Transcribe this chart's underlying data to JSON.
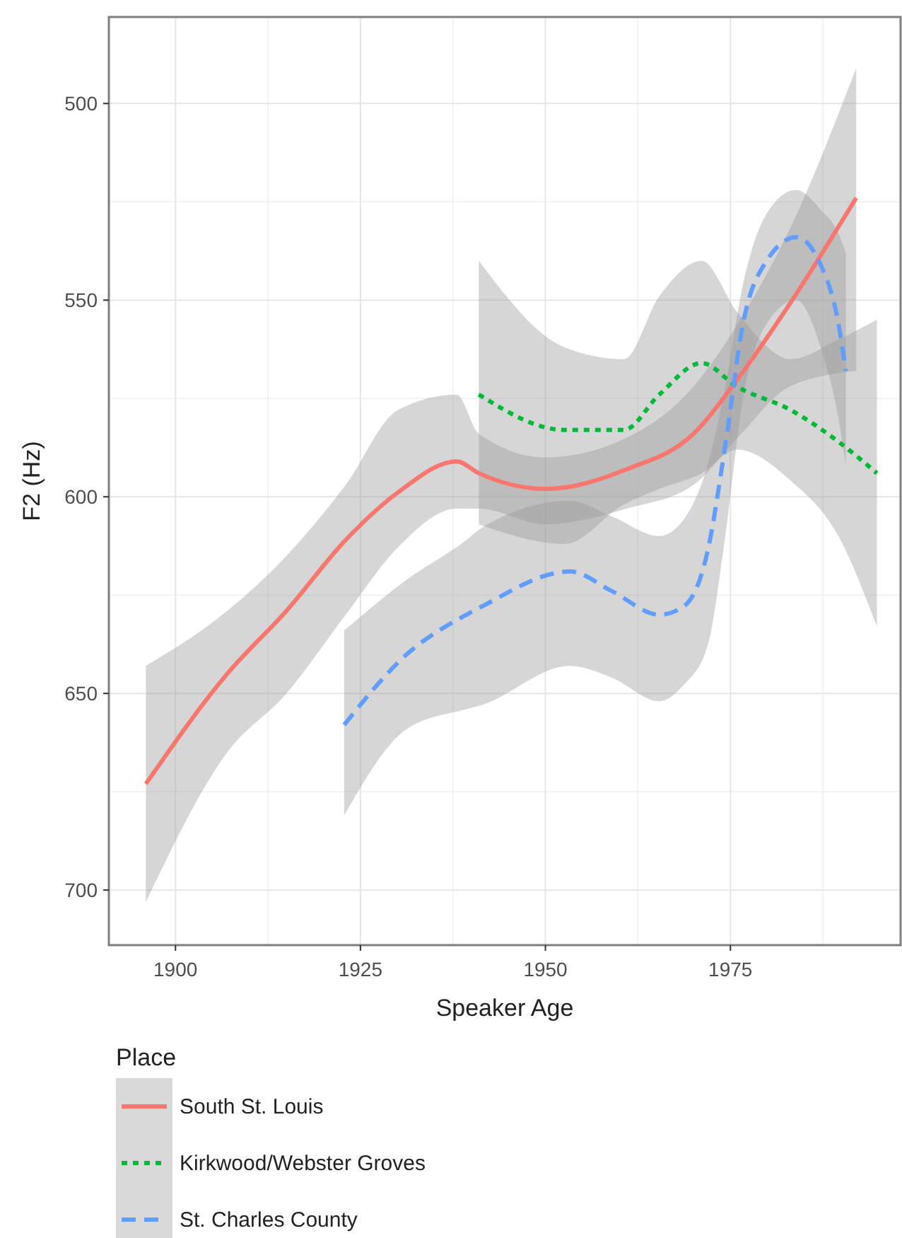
{
  "chart_data": {
    "type": "line",
    "xlabel": "Speaker Age",
    "ylabel": "F2 (Hz)",
    "legend_title": "Place",
    "legend": "bottom",
    "grid": true,
    "xlim": [
      1891,
      1998
    ],
    "xticks": [
      1900,
      1925,
      1950,
      1975
    ],
    "ylim": [
      714,
      478
    ],
    "yticks": [
      500,
      550,
      600,
      650,
      700
    ],
    "series": [
      {
        "name": "South St. Louis",
        "color": "#f8766d",
        "line_style": "solid",
        "x": [
          1896,
          1907,
          1915,
          1923,
          1930,
          1938,
          1941,
          1950,
          1961,
          1970,
          1976,
          1983,
          1992
        ],
        "values": [
          673,
          645,
          629,
          611,
          599,
          591,
          594,
          598,
          593,
          584,
          570,
          551,
          524
        ],
        "lower": [
          643,
          629,
          615,
          597,
          578,
          574,
          584,
          590,
          585,
          572,
          556,
          532,
          491
        ],
        "upper": [
          703,
          665,
          650,
          630,
          613,
          603,
          603,
          607,
          603,
          597,
          585,
          572,
          568
        ]
      },
      {
        "name": "Kirkwood/Webster Groves",
        "color": "#00ba38",
        "line_style": "dotted",
        "x": [
          1941,
          1952.6,
          1960.6,
          1965.4,
          1971.1,
          1975.9,
          1983.2,
          1989.6,
          1994.8
        ],
        "values": [
          574,
          583,
          583,
          574,
          566,
          572,
          578,
          586,
          594
        ],
        "lower": [
          540,
          562,
          565,
          549,
          540,
          553,
          565,
          560,
          555
        ],
        "upper": [
          607,
          612,
          602,
          598,
          594,
          588,
          596,
          610,
          633
        ]
      },
      {
        "name": "St. Charles County",
        "color": "#619cff",
        "line_style": "dashed",
        "x": [
          1922.8,
          1931.3,
          1939.3,
          1941.3,
          1953.3,
          1959,
          1965.4,
          1968.6,
          1971.9,
          1974.3,
          1976.7,
          1979.9,
          1983.9,
          1987.2,
          1989.6,
          1990.6
        ],
        "values": [
          658,
          640,
          630,
          628,
          619,
          624,
          630,
          628,
          614,
          587,
          556,
          540,
          534,
          541,
          556,
          568
        ],
        "lower": [
          634,
          621,
          611,
          608,
          601,
          605,
          610,
          606,
          592,
          572,
          546,
          528,
          522,
          527,
          533,
          538
        ],
        "upper": [
          681,
          659,
          654,
          653,
          643,
          646,
          652,
          648,
          638,
          610,
          575,
          556,
          550,
          562,
          580,
          592
        ]
      }
    ]
  }
}
